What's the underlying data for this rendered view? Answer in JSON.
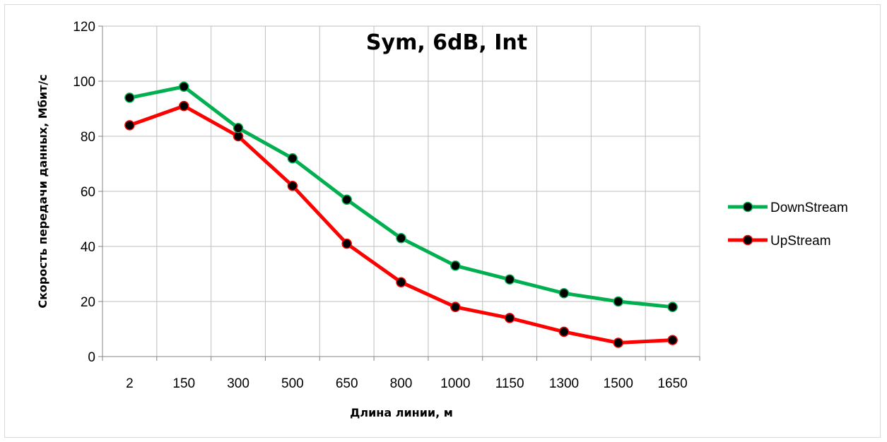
{
  "chart_data": {
    "type": "line",
    "title": "Sym, 6dB, Int",
    "xlabel": "Длина линии, м",
    "ylabel": "Скорость передачи данных, Мбит/с",
    "categories": [
      "2",
      "150",
      "300",
      "500",
      "650",
      "800",
      "1000",
      "1150",
      "1300",
      "1500",
      "1650"
    ],
    "ylim": [
      0,
      120
    ],
    "yticks": [
      "0",
      "20",
      "40",
      "60",
      "80",
      "100",
      "120"
    ],
    "grid": true,
    "legend_position": "right",
    "series": [
      {
        "name": "DownStream",
        "color": "#00b050",
        "values": [
          94,
          98,
          83,
          72,
          57,
          43,
          33,
          28,
          23,
          20,
          18
        ]
      },
      {
        "name": "UpStream",
        "color": "#ff0000",
        "values": [
          84,
          91,
          80,
          62,
          41,
          27,
          18,
          14,
          9,
          5,
          6
        ]
      }
    ],
    "marker_color": "#000000"
  }
}
